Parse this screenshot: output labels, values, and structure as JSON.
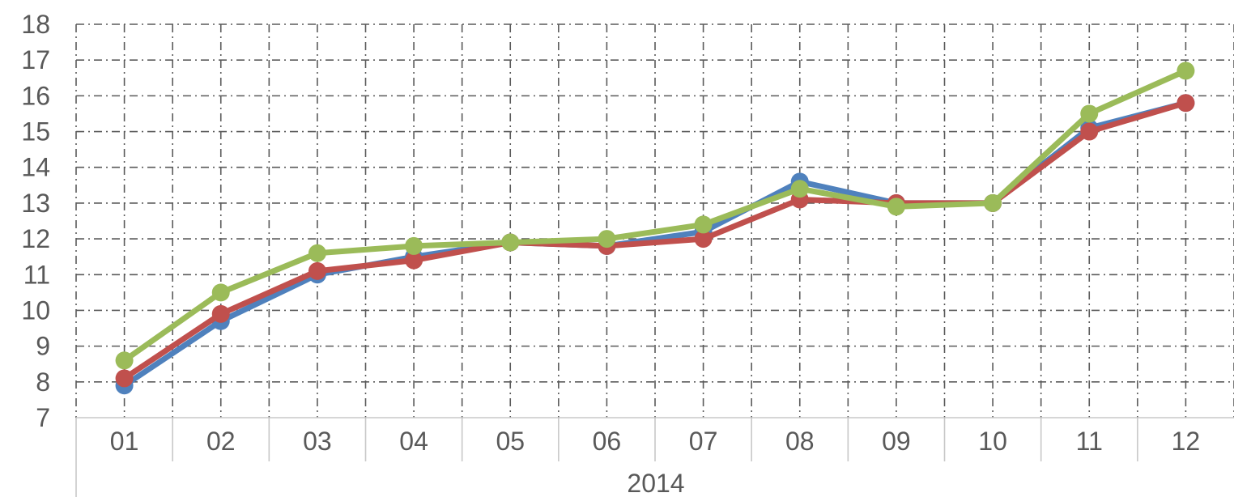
{
  "chart_data": {
    "type": "line",
    "categories": [
      "01",
      "02",
      "03",
      "04",
      "05",
      "06",
      "07",
      "08",
      "09",
      "10",
      "11",
      "12"
    ],
    "group_label": "2014",
    "y_ticks": [
      "7",
      "8",
      "9",
      "10",
      "11",
      "12",
      "13",
      "14",
      "15",
      "16",
      "17",
      "18"
    ],
    "ylim": [
      7,
      18
    ],
    "grid": true,
    "legend": "none",
    "series": [
      {
        "color": "#4f81bd",
        "values": [
          7.9,
          9.7,
          11.0,
          11.5,
          11.9,
          11.8,
          12.2,
          13.6,
          13.0,
          13.0,
          15.1,
          15.8
        ]
      },
      {
        "color": "#c0504d",
        "values": [
          8.1,
          9.9,
          11.1,
          11.4,
          11.9,
          11.8,
          12.0,
          13.1,
          13.0,
          13.0,
          15.0,
          15.8
        ]
      },
      {
        "color": "#9bbb59",
        "values": [
          8.6,
          10.5,
          11.6,
          11.8,
          11.9,
          12.0,
          12.4,
          13.4,
          12.9,
          13.0,
          15.5,
          16.7
        ]
      }
    ]
  }
}
